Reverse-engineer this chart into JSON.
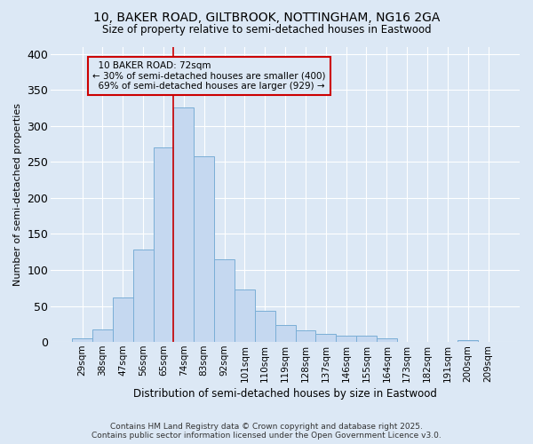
{
  "title1": "10, BAKER ROAD, GILTBROOK, NOTTINGHAM, NG16 2GA",
  "title2": "Size of property relative to semi-detached houses in Eastwood",
  "xlabel": "Distribution of semi-detached houses by size in Eastwood",
  "ylabel": "Number of semi-detached properties",
  "categories": [
    "29sqm",
    "38sqm",
    "47sqm",
    "56sqm",
    "65sqm",
    "74sqm",
    "83sqm",
    "92sqm",
    "101sqm",
    "110sqm",
    "119sqm",
    "128sqm",
    "137sqm",
    "146sqm",
    "155sqm",
    "164sqm",
    "173sqm",
    "182sqm",
    "191sqm",
    "200sqm",
    "209sqm"
  ],
  "values": [
    5,
    17,
    62,
    128,
    270,
    325,
    258,
    115,
    73,
    43,
    23,
    16,
    11,
    9,
    9,
    5,
    0,
    0,
    0,
    3,
    0
  ],
  "bar_color": "#c5d8f0",
  "bar_edge_color": "#7aaed6",
  "property_label": "10 BAKER ROAD: 72sqm",
  "pct_smaller": 30,
  "pct_larger": 69,
  "n_smaller": 400,
  "n_larger": 929,
  "vline_x": 5,
  "annotation_box_color": "#cc0000",
  "ylim": [
    0,
    410
  ],
  "yticks": [
    0,
    50,
    100,
    150,
    200,
    250,
    300,
    350,
    400
  ],
  "background_color": "#dce8f5",
  "plot_bg_color": "#dce8f5",
  "grid_color": "#ffffff",
  "footer": "Contains HM Land Registry data © Crown copyright and database right 2025.\nContains public sector information licensed under the Open Government Licence v3.0."
}
